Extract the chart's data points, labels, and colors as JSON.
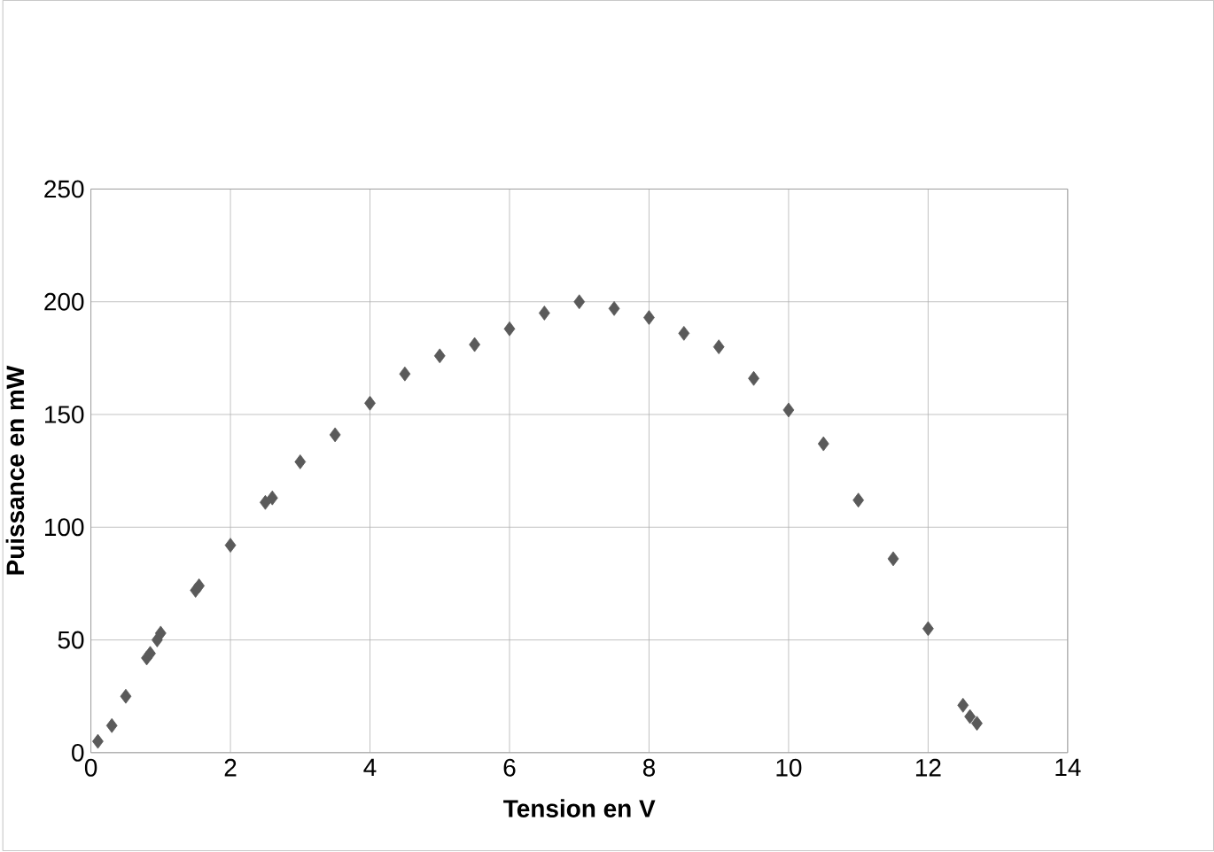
{
  "chart_data": {
    "type": "scatter",
    "xlabel": "Tension en V",
    "ylabel": "Puissance en mW",
    "x": [
      0.1,
      0.3,
      0.5,
      0.8,
      0.85,
      0.95,
      1.0,
      1.5,
      1.55,
      2,
      2.5,
      2.6,
      3,
      3.5,
      4,
      4.5,
      5,
      5.5,
      6,
      6.5,
      7,
      7.5,
      8,
      8.5,
      9,
      9.5,
      10,
      10.5,
      11,
      11.5,
      12,
      12.5,
      12.6,
      12.7
    ],
    "values": [
      5,
      12,
      25,
      42,
      44,
      50,
      53,
      72,
      74,
      92,
      111,
      113,
      129,
      141,
      155,
      168,
      176,
      181,
      188,
      195,
      200,
      197,
      193,
      186,
      180,
      166,
      152,
      137,
      112,
      86,
      55,
      21,
      16,
      13
    ],
    "color": "#5a5a5a",
    "marker": "diamond",
    "grid": true,
    "xlim": [
      0,
      14
    ],
    "ylim": [
      0,
      250
    ],
    "xticks": [
      0,
      2,
      4,
      6,
      8,
      10,
      12,
      14
    ],
    "yticks": [
      0,
      50,
      100,
      150,
      200,
      250
    ]
  }
}
